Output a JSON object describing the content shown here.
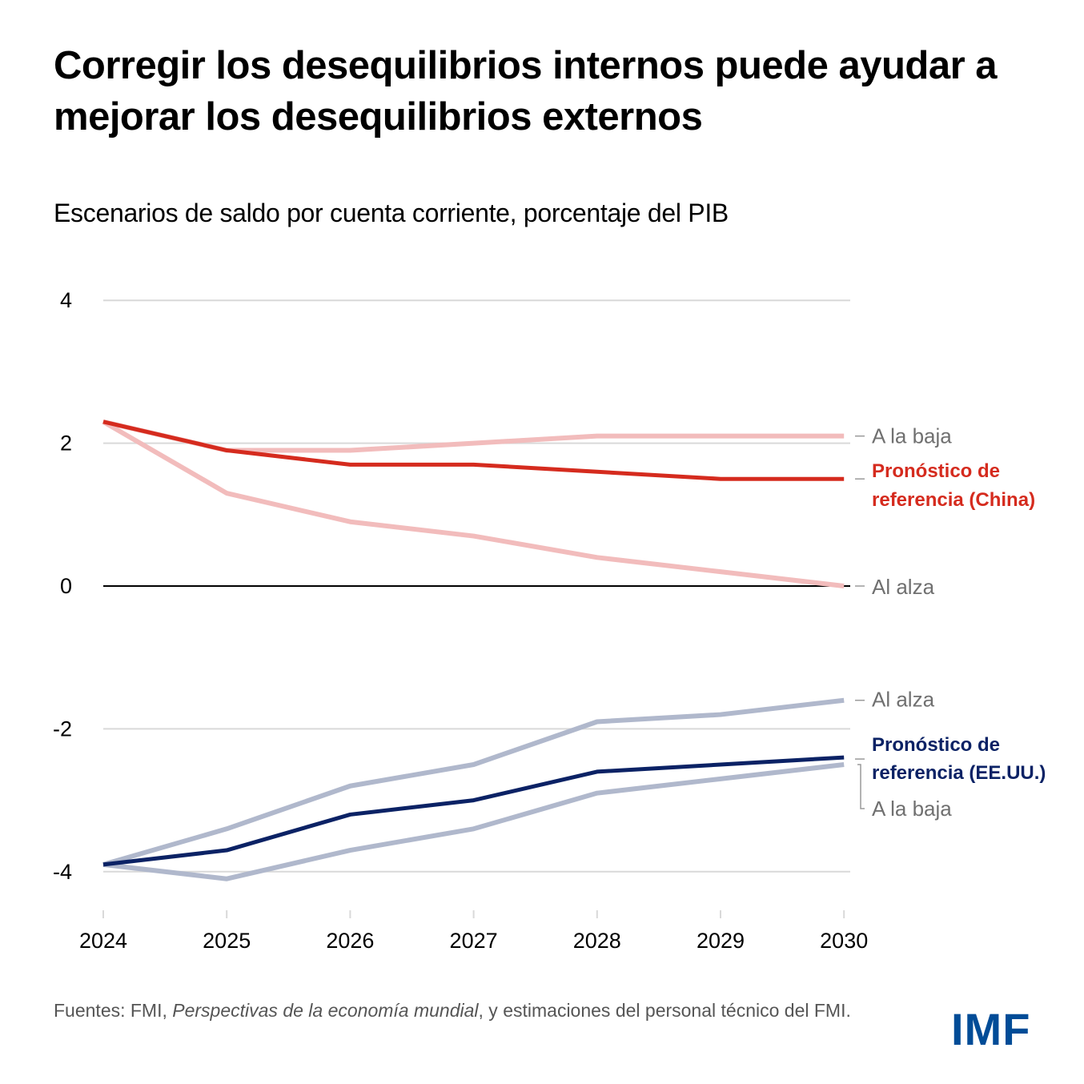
{
  "header": {
    "title": "Corregir los desequilibrios internos puede ayudar a mejorar los desequilibrios externos",
    "subtitle": "Escenarios de saldo por cuenta corriente, porcentaje del PIB"
  },
  "footer": {
    "source_prefix": "Fuentes: FMI, ",
    "source_italic": "Perspectivas de la economía mundial",
    "source_suffix": ", y estimaciones del personal técnico del FMI.",
    "logo": "IMF"
  },
  "colors": {
    "china_baseline": "#d52b1e",
    "china_scenario": "#f2bcbc",
    "us_baseline": "#0b2265",
    "us_scenario": "#b0b8cc",
    "grid": "#d9d9d9",
    "zero_line": "#000000",
    "logo": "#004c97"
  },
  "chart_data": {
    "type": "line",
    "title": "Corregir los desequilibrios internos puede ayudar a mejorar los desequilibrios externos",
    "subtitle": "Escenarios de saldo por cuenta corriente, porcentaje del PIB",
    "xlabel": "",
    "ylabel": "",
    "x": [
      "2024",
      "2025",
      "2026",
      "2027",
      "2028",
      "2029",
      "2030"
    ],
    "ylim": [
      -4.5,
      4
    ],
    "yticks": [
      4,
      2,
      0,
      -2,
      -4
    ],
    "ytick_labels": [
      "4",
      "2",
      "0",
      "-2",
      "-4"
    ],
    "grid": true,
    "legend": "direct-labels-right",
    "series": [
      {
        "name": "China - A la baja",
        "label": "A la baja",
        "role": "china_scenario",
        "values": [
          2.3,
          1.9,
          1.9,
          2.0,
          2.1,
          2.1,
          2.1
        ]
      },
      {
        "name": "China - Al alza",
        "label": "Al alza",
        "role": "china_scenario",
        "values": [
          2.3,
          1.3,
          0.9,
          0.7,
          0.4,
          0.2,
          0.0
        ]
      },
      {
        "name": "Pronóstico de referencia (China)",
        "label_lines": [
          "Pronóstico de",
          "referencia (China)"
        ],
        "role": "china_baseline",
        "values": [
          2.3,
          1.9,
          1.7,
          1.7,
          1.6,
          1.5,
          1.5
        ]
      },
      {
        "name": "EE.UU. - Al alza",
        "label": "Al alza",
        "role": "us_scenario",
        "values": [
          -3.9,
          -3.4,
          -2.8,
          -2.5,
          -1.9,
          -1.8,
          -1.6
        ]
      },
      {
        "name": "EE.UU. - A la baja",
        "label": "A la baja",
        "role": "us_scenario",
        "values": [
          -3.9,
          -4.1,
          -3.7,
          -3.4,
          -2.9,
          -2.7,
          -2.5
        ]
      },
      {
        "name": "Pronóstico de referencia (EE.UU.)",
        "label_lines": [
          "Pronóstico de",
          "referencia (EE.UU.)"
        ],
        "role": "us_baseline",
        "values": [
          -3.9,
          -3.7,
          -3.2,
          -3.0,
          -2.6,
          -2.5,
          -2.4
        ]
      }
    ]
  }
}
